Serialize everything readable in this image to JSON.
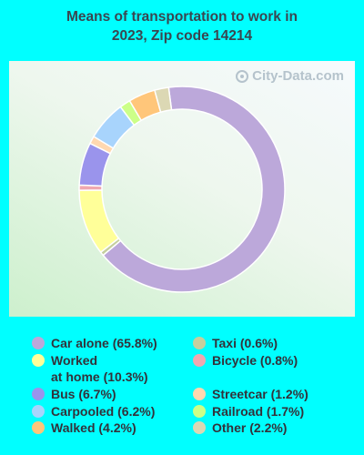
{
  "title_line1": "Means of transportation to work in",
  "title_line2": "2023, Zip code 14214",
  "watermark": "City-Data.com",
  "chart_data": {
    "type": "pie",
    "donut": true,
    "title": "Means of transportation to work in 2023, Zip code 14214",
    "unit": "%",
    "slices": [
      {
        "label": "Car alone",
        "value": 65.8,
        "color": "#bca8da"
      },
      {
        "label": "Taxi",
        "value": 0.6,
        "color": "#c5cf9e"
      },
      {
        "label": "Worked at home",
        "value": 10.3,
        "color": "#ffff99"
      },
      {
        "label": "Bicycle",
        "value": 0.8,
        "color": "#f0a8b0"
      },
      {
        "label": "Bus",
        "value": 6.7,
        "color": "#9a94ec"
      },
      {
        "label": "Streetcar",
        "value": 1.2,
        "color": "#ffd8b0"
      },
      {
        "label": "Carpooled",
        "value": 6.2,
        "color": "#a8d4fc"
      },
      {
        "label": "Railroad",
        "value": 1.7,
        "color": "#ccff88"
      },
      {
        "label": "Walked",
        "value": 4.2,
        "color": "#ffc67a"
      },
      {
        "label": "Other",
        "value": 2.2,
        "color": "#dcd8b4"
      }
    ],
    "legend": [
      {
        "text": "Car alone (65.8%)",
        "color": "#bca8da"
      },
      {
        "text": "Worked",
        "text2": "at home (10.3%)",
        "color": "#ffff99"
      },
      {
        "text": "Bus (6.7%)",
        "color": "#9a94ec"
      },
      {
        "text": "Carpooled (6.2%)",
        "color": "#a8d4fc"
      },
      {
        "text": "Walked (4.2%)",
        "color": "#ffc67a"
      },
      {
        "text": "Taxi (0.6%)",
        "color": "#c5cf9e"
      },
      {
        "text": "Bicycle (0.8%)",
        "color": "#f0a8b0"
      },
      {
        "text": "Streetcar (1.2%)",
        "color": "#ffd8b0"
      },
      {
        "text": "Railroad (1.7%)",
        "color": "#ccff88"
      },
      {
        "text": "Other (2.2%)",
        "color": "#dcd8b4"
      }
    ],
    "legend_placement": "bottom"
  }
}
